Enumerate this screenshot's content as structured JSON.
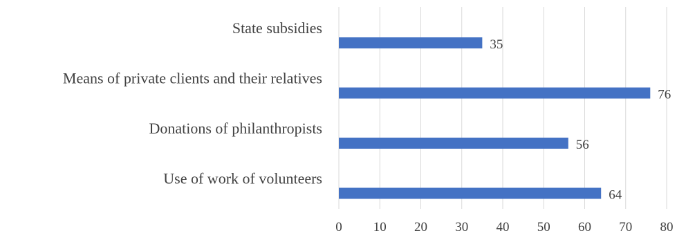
{
  "chart_data": {
    "type": "bar",
    "orientation": "horizontal",
    "categories": [
      "State subsidies",
      "Means of private clients and their relatives",
      "Donations of philanthropists",
      "Use of work of volunteers"
    ],
    "values": [
      35,
      76,
      56,
      64
    ],
    "data_labels": [
      "35",
      "76",
      "56",
      "64"
    ],
    "xlim": [
      0,
      80
    ],
    "x_ticks": [
      0,
      10,
      20,
      30,
      40,
      50,
      60,
      70,
      80
    ],
    "x_tick_labels": [
      "0",
      "10",
      "20",
      "30",
      "40",
      "50",
      "60",
      "70",
      "80"
    ],
    "title": "",
    "xlabel": "",
    "ylabel": "",
    "grid": "vertical",
    "legend": "none",
    "bar_color": "#4472c4",
    "grid_color": "#d9d9d9",
    "text_color": "#404040"
  }
}
